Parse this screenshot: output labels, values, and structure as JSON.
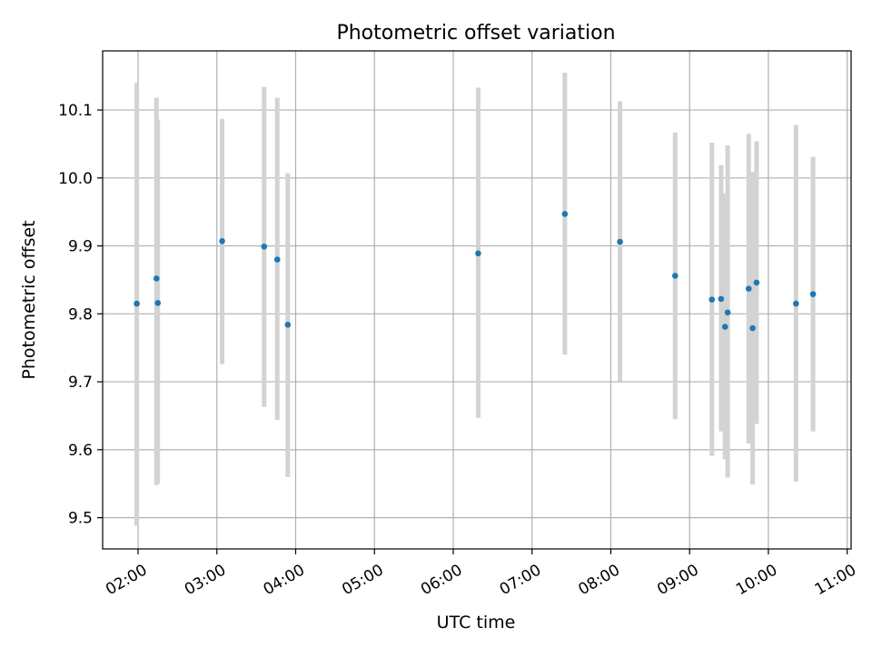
{
  "chart_data": {
    "type": "scatter",
    "title": "Photometric offset variation",
    "xlabel": "UTC time",
    "ylabel": "Photometric offset",
    "x_axis": {
      "type": "time",
      "xlim": [
        "01:33",
        "11:03"
      ],
      "ticks": [
        "02:00",
        "03:00",
        "04:00",
        "05:00",
        "06:00",
        "07:00",
        "08:00",
        "09:00",
        "10:00",
        "11:00"
      ]
    },
    "y_axis": {
      "ylim": [
        9.454,
        10.187
      ],
      "ticks": [
        9.5,
        9.6,
        9.7,
        9.8,
        9.9,
        10.0,
        10.1
      ],
      "tick_labels": [
        "9.5",
        "9.6",
        "9.7",
        "9.8",
        "9.9",
        "10.0",
        "10.1"
      ]
    },
    "grid": true,
    "legend": "none",
    "colors": {
      "points": "#1f77b4",
      "error_bars": "#d3d3d3",
      "grid": "#b0b0b0"
    },
    "series": [
      {
        "points": [
          {
            "x": "01:59",
            "y": 9.815,
            "ylo": 9.488,
            "yhi": 10.14
          },
          {
            "x": "02:14",
            "y": 9.852,
            "ylo": 9.548,
            "yhi": 10.118
          },
          {
            "x": "02:15",
            "y": 9.816,
            "ylo": 9.55,
            "yhi": 10.086
          },
          {
            "x": "03:04",
            "y": 9.907,
            "ylo": 9.726,
            "yhi": 10.087
          },
          {
            "x": "03:36",
            "y": 9.899,
            "ylo": 9.663,
            "yhi": 10.134
          },
          {
            "x": "03:46",
            "y": 9.88,
            "ylo": 9.644,
            "yhi": 10.118
          },
          {
            "x": "03:54",
            "y": 9.784,
            "ylo": 9.56,
            "yhi": 10.007
          },
          {
            "x": "06:19",
            "y": 9.889,
            "ylo": 9.647,
            "yhi": 10.133
          },
          {
            "x": "07:25",
            "y": 9.947,
            "ylo": 9.74,
            "yhi": 10.155
          },
          {
            "x": "08:07",
            "y": 9.906,
            "ylo": 9.701,
            "yhi": 10.113
          },
          {
            "x": "08:49",
            "y": 9.856,
            "ylo": 9.645,
            "yhi": 10.067
          },
          {
            "x": "09:17",
            "y": 9.821,
            "ylo": 9.591,
            "yhi": 10.052
          },
          {
            "x": "09:24",
            "y": 9.822,
            "ylo": 9.627,
            "yhi": 10.019
          },
          {
            "x": "09:27",
            "y": 9.781,
            "ylo": 9.586,
            "yhi": 9.977
          },
          {
            "x": "09:29",
            "y": 9.802,
            "ylo": 9.559,
            "yhi": 10.048
          },
          {
            "x": "09:45",
            "y": 9.837,
            "ylo": 9.609,
            "yhi": 10.065
          },
          {
            "x": "09:48",
            "y": 9.779,
            "ylo": 9.549,
            "yhi": 10.009
          },
          {
            "x": "09:51",
            "y": 9.846,
            "ylo": 9.638,
            "yhi": 10.054
          },
          {
            "x": "10:21",
            "y": 9.815,
            "ylo": 9.553,
            "yhi": 10.078
          },
          {
            "x": "10:34",
            "y": 9.829,
            "ylo": 9.627,
            "yhi": 10.031
          }
        ]
      }
    ]
  }
}
